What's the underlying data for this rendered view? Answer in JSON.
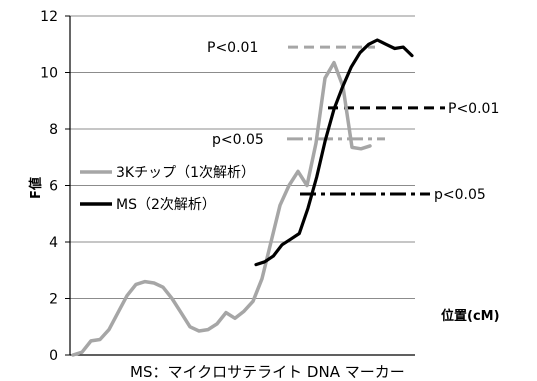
{
  "chart_data": {
    "type": "line",
    "ylabel": "F値",
    "xlabel": "位置(cM)",
    "caption": "MS：マイクロサテライト DNA マーカー",
    "ylim": [
      0,
      12
    ],
    "y_ticks": [
      "0",
      "2",
      "4",
      "6",
      "8",
      "10",
      "12"
    ],
    "grid": true,
    "legend_position": "middle-left",
    "series": [
      {
        "name": "3Kチップ（1次解析）",
        "color": "#a6a6a6",
        "values": [
          0.0,
          0.1,
          0.5,
          0.55,
          0.9,
          1.5,
          2.1,
          2.5,
          2.6,
          2.55,
          2.4,
          2.0,
          1.5,
          1.0,
          0.85,
          0.9,
          1.1,
          1.5,
          1.3,
          1.55,
          1.9,
          2.7,
          4.0,
          5.3,
          6.0,
          6.5,
          6.0,
          7.5,
          9.8,
          10.35,
          9.5,
          7.35,
          7.3,
          7.4
        ]
      },
      {
        "name": "MS（2次解析）",
        "color": "#000000",
        "values": [
          3.2,
          3.3,
          3.5,
          3.9,
          4.1,
          4.3,
          5.2,
          6.3,
          7.6,
          8.7,
          9.5,
          10.2,
          10.7,
          11.0,
          11.15,
          11.0,
          10.85,
          10.9,
          10.6
        ]
      }
    ],
    "thresholds": [
      {
        "label": "P<0.01",
        "style": "dashed",
        "color": "#a6a6a6",
        "y": 10.9
      },
      {
        "label": "P<0.01",
        "style": "dashed",
        "color": "#000000",
        "y": 8.75
      },
      {
        "label": "p<0.05",
        "style": "dashdot",
        "color": "#a6a6a6",
        "y": 7.65
      },
      {
        "label": "p<0.05",
        "style": "dashdot",
        "color": "#000000",
        "y": 5.7
      }
    ]
  }
}
